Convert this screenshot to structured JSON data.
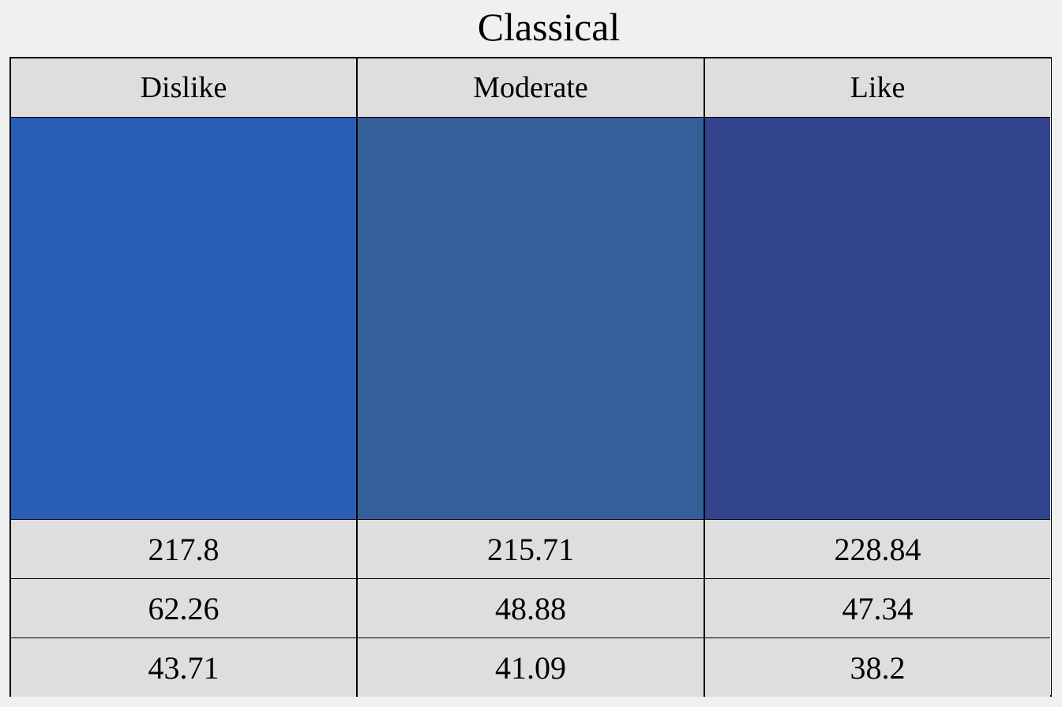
{
  "chart_data": {
    "type": "table",
    "title": "Classical",
    "columns": [
      "Dislike",
      "Moderate",
      "Like"
    ],
    "colors": [
      "#2a5db5",
      "#355f99",
      "#32448e"
    ],
    "rows": [
      [
        "217.8",
        "215.71",
        "228.84"
      ],
      [
        "62.26",
        "48.88",
        "47.34"
      ],
      [
        "43.71",
        "41.09",
        "38.2"
      ]
    ]
  }
}
